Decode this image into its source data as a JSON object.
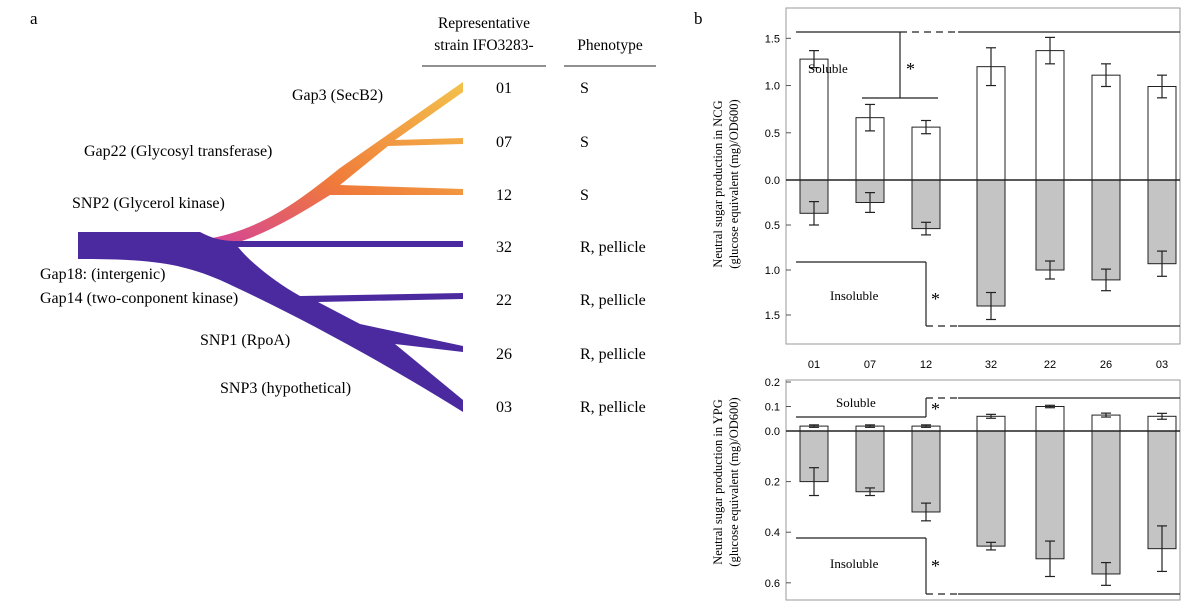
{
  "panel_a": {
    "letter": "a",
    "header_strain_line1": "Representative",
    "header_strain_line2": "strain IFO3283-",
    "header_phenotype": "Phenotype",
    "mutations": [
      "Gap3 (SecB2)",
      "Gap22 (Glycosyl transferase)",
      "SNP2 (Glycerol kinase)",
      "Gap18: (intergenic)",
      "Gap14 (two-conponent kinase)",
      "SNP1 (RpoA)",
      "SNP3 (hypothetical)"
    ],
    "strains": [
      {
        "id": "01",
        "phenotype": "S"
      },
      {
        "id": "07",
        "phenotype": "S"
      },
      {
        "id": "12",
        "phenotype": "S"
      },
      {
        "id": "32",
        "phenotype": "R, pellicle"
      },
      {
        "id": "22",
        "phenotype": "R, pellicle"
      },
      {
        "id": "26",
        "phenotype": "R, pellicle"
      },
      {
        "id": "03",
        "phenotype": "R, pellicle"
      }
    ],
    "colors": {
      "resistant_branch": "#4b2aa0",
      "sensitive_tip": "#f2c24a",
      "junction": "#d23fa0"
    }
  },
  "panel_b": {
    "letter": "b",
    "colors": {
      "soluble": "#ffffff",
      "insoluble": "#c4c4c4",
      "stroke": "#222222"
    }
  },
  "chart_data": [
    {
      "type": "bar",
      "ylabel_line1": "Neutral sugar production in NCG",
      "ylabel_line2": "(glucose equivalent (mg)/OD600)",
      "categories": [
        "01",
        "07",
        "12",
        "32",
        "22",
        "26",
        "03"
      ],
      "series": [
        {
          "name": "Soluble",
          "direction": "up",
          "values": [
            1.28,
            0.66,
            0.56,
            1.2,
            1.37,
            1.11,
            0.99
          ],
          "errors": [
            0.09,
            0.14,
            0.07,
            0.2,
            0.14,
            0.12,
            0.12
          ]
        },
        {
          "name": "Insoluble",
          "direction": "down",
          "values": [
            0.37,
            0.25,
            0.54,
            1.4,
            1.0,
            1.11,
            0.93
          ],
          "errors": [
            0.13,
            0.11,
            0.07,
            0.15,
            0.1,
            0.12,
            0.14
          ]
        }
      ],
      "yticks_up": [
        {
          "value": 1.5,
          "label": "1.5"
        },
        {
          "value": 1.0,
          "label": "1.0"
        },
        {
          "value": 0.5,
          "label": "0.5"
        },
        {
          "value": 0.0,
          "label": "0.0"
        }
      ],
      "yticks_down": [
        {
          "value": 0.5,
          "label": "0.5"
        },
        {
          "value": 1.0,
          "label": "1.0"
        },
        {
          "value": 1.5,
          "label": "1.5"
        }
      ],
      "ylim_up": 1.8,
      "ylim_down": 1.8,
      "significance_marker": "*"
    },
    {
      "type": "bar",
      "ylabel_line1": "Neutral sugar production in YPG",
      "ylabel_line2": "(glucose equivalent (mg)/OD600)",
      "categories": [
        "01",
        "07",
        "12",
        "32",
        "22",
        "26",
        "03"
      ],
      "series": [
        {
          "name": "Soluble",
          "direction": "up",
          "values": [
            0.02,
            0.02,
            0.02,
            0.06,
            0.1,
            0.065,
            0.06
          ],
          "errors": [
            0.005,
            0.005,
            0.005,
            0.008,
            0.005,
            0.008,
            0.012
          ]
        },
        {
          "name": "Insoluble",
          "direction": "down",
          "values": [
            0.2,
            0.24,
            0.32,
            0.455,
            0.505,
            0.565,
            0.465
          ],
          "errors": [
            0.055,
            0.015,
            0.035,
            0.015,
            0.07,
            0.045,
            0.09
          ]
        }
      ],
      "yticks_up": [
        {
          "value": 0.2,
          "label": "0.2"
        },
        {
          "value": 0.1,
          "label": "0.1"
        },
        {
          "value": 0.0,
          "label": "0.0"
        }
      ],
      "yticks_down": [
        {
          "value": 0.2,
          "label": "0.2"
        },
        {
          "value": 0.4,
          "label": "0.4"
        },
        {
          "value": 0.6,
          "label": "0.6"
        }
      ],
      "ylim_up": 0.2,
      "ylim_down": 0.66,
      "significance_marker": "*"
    }
  ]
}
